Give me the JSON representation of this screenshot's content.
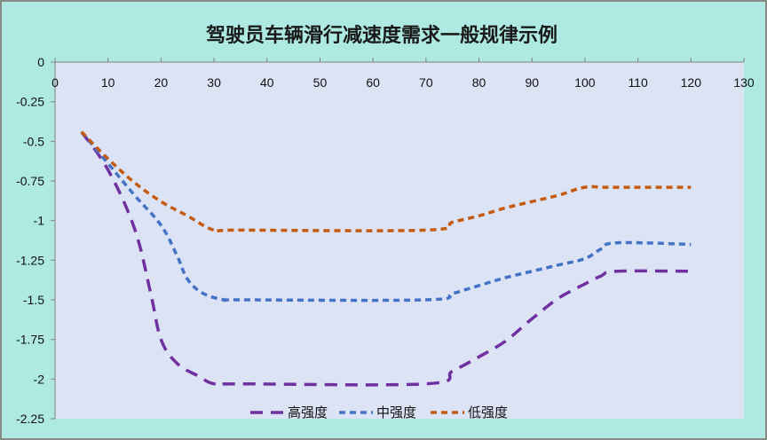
{
  "chart_data": {
    "type": "line",
    "title": "驾驶员车辆滑行减速度需求一般规律示例",
    "xlabel": "",
    "ylabel": "",
    "xlim": [
      0,
      130
    ],
    "ylim": [
      -2.25,
      0
    ],
    "x_ticks": [
      "0",
      "10",
      "20",
      "30",
      "40",
      "50",
      "60",
      "70",
      "80",
      "90",
      "100",
      "110",
      "120",
      "130"
    ],
    "y_ticks": [
      "0",
      "-0.25",
      "-0.5",
      "-0.75",
      "-1",
      "-1.25",
      "-1.5",
      "-1.75",
      "-2",
      "-2.25"
    ],
    "grid": false,
    "legend_position": "bottom",
    "series": [
      {
        "name": "高强度",
        "color": "#7030a0",
        "points": [
          [
            5,
            -0.44
          ],
          [
            10,
            -0.68
          ],
          [
            15,
            -1.05
          ],
          [
            18,
            -1.45
          ],
          [
            20,
            -1.75
          ],
          [
            23,
            -1.9
          ],
          [
            27,
            -1.98
          ],
          [
            30,
            -2.03
          ],
          [
            35,
            -2.03
          ],
          [
            70,
            -2.03
          ],
          [
            75,
            -1.95
          ],
          [
            80,
            -1.86
          ],
          [
            85,
            -1.76
          ],
          [
            90,
            -1.62
          ],
          [
            95,
            -1.49
          ],
          [
            100,
            -1.4
          ],
          [
            103,
            -1.35
          ],
          [
            106,
            -1.32
          ],
          [
            120,
            -1.32
          ]
        ]
      },
      {
        "name": "中强度",
        "color": "#4472c4",
        "points": [
          [
            5,
            -0.44
          ],
          [
            10,
            -0.64
          ],
          [
            15,
            -0.84
          ],
          [
            20,
            -1.03
          ],
          [
            23,
            -1.22
          ],
          [
            25,
            -1.37
          ],
          [
            28,
            -1.46
          ],
          [
            32,
            -1.5
          ],
          [
            35,
            -1.5
          ],
          [
            70,
            -1.5
          ],
          [
            75,
            -1.46
          ],
          [
            80,
            -1.41
          ],
          [
            85,
            -1.36
          ],
          [
            90,
            -1.32
          ],
          [
            95,
            -1.28
          ],
          [
            100,
            -1.24
          ],
          [
            103,
            -1.18
          ],
          [
            106,
            -1.14
          ],
          [
            120,
            -1.15
          ]
        ]
      },
      {
        "name": "低强度",
        "color": "#c55a11",
        "points": [
          [
            5,
            -0.44
          ],
          [
            10,
            -0.61
          ],
          [
            15,
            -0.76
          ],
          [
            20,
            -0.88
          ],
          [
            25,
            -0.97
          ],
          [
            30,
            -1.06
          ],
          [
            35,
            -1.06
          ],
          [
            70,
            -1.06
          ],
          [
            75,
            -1.01
          ],
          [
            80,
            -0.97
          ],
          [
            85,
            -0.92
          ],
          [
            90,
            -0.88
          ],
          [
            95,
            -0.84
          ],
          [
            100,
            -0.79
          ],
          [
            105,
            -0.79
          ],
          [
            120,
            -0.79
          ]
        ]
      }
    ],
    "colors": {
      "plot_background": "#dce3f5",
      "chart_background": "#aee9e2"
    }
  }
}
